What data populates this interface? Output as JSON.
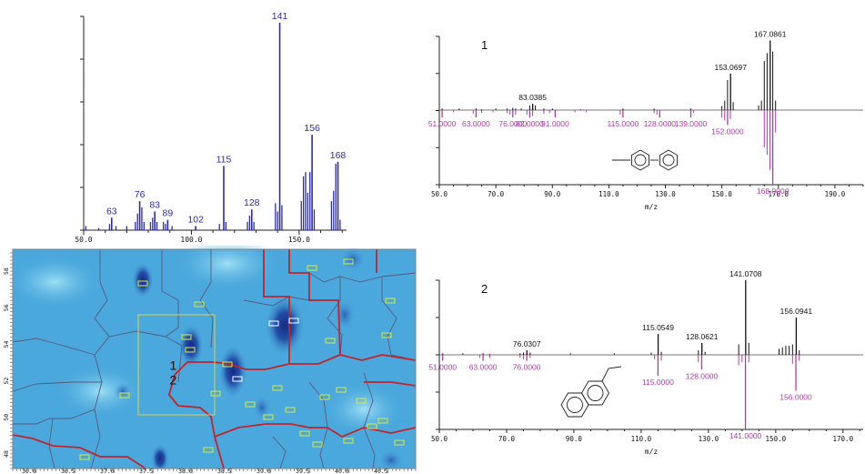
{
  "chart_data": [
    {
      "id": "ei",
      "type": "bar",
      "x_ticks": [
        "50.0",
        "100.0",
        "150.0"
      ],
      "xlim": [
        50,
        172
      ],
      "ylim": [
        0,
        100
      ],
      "labeled_peaks": [
        {
          "label": "63",
          "x": 63,
          "y": 6
        },
        {
          "label": "76",
          "x": 76,
          "y": 14
        },
        {
          "label": "83",
          "x": 83,
          "y": 9
        },
        {
          "label": "89",
          "x": 89,
          "y": 5
        },
        {
          "label": "102",
          "x": 102,
          "y": 2
        },
        {
          "label": "115",
          "x": 115,
          "y": 31
        },
        {
          "label": "128",
          "x": 128,
          "y": 10
        },
        {
          "label": "141",
          "x": 141,
          "y": 100
        },
        {
          "label": "156",
          "x": 156,
          "y": 46
        },
        {
          "label": "168",
          "x": 168,
          "y": 33
        }
      ],
      "minor_peaks": [
        {
          "x": 51,
          "y": 2
        },
        {
          "x": 57,
          "y": 1
        },
        {
          "x": 62,
          "y": 3
        },
        {
          "x": 65,
          "y": 2
        },
        {
          "x": 70,
          "y": 2
        },
        {
          "x": 74,
          "y": 4
        },
        {
          "x": 75,
          "y": 8
        },
        {
          "x": 77,
          "y": 11
        },
        {
          "x": 78,
          "y": 4
        },
        {
          "x": 81,
          "y": 4
        },
        {
          "x": 82,
          "y": 6
        },
        {
          "x": 84,
          "y": 4
        },
        {
          "x": 87,
          "y": 4
        },
        {
          "x": 88,
          "y": 3
        },
        {
          "x": 91,
          "y": 2
        },
        {
          "x": 113,
          "y": 3
        },
        {
          "x": 116,
          "y": 4
        },
        {
          "x": 126,
          "y": 4
        },
        {
          "x": 127,
          "y": 7
        },
        {
          "x": 129,
          "y": 4
        },
        {
          "x": 139,
          "y": 13
        },
        {
          "x": 140,
          "y": 9
        },
        {
          "x": 142,
          "y": 12
        },
        {
          "x": 151,
          "y": 14
        },
        {
          "x": 152,
          "y": 26
        },
        {
          "x": 153,
          "y": 28
        },
        {
          "x": 154,
          "y": 18
        },
        {
          "x": 155,
          "y": 28
        },
        {
          "x": 157,
          "y": 10
        },
        {
          "x": 165,
          "y": 14
        },
        {
          "x": 166,
          "y": 19
        },
        {
          "x": 167,
          "y": 32
        },
        {
          "x": 169,
          "y": 5
        }
      ]
    },
    {
      "id": "mirror1",
      "type": "bar",
      "panel_label": "1",
      "xlabel": "m/z",
      "x_ticks": [
        "50.0",
        "70.0",
        "90.0",
        "110.0",
        "130.0",
        "150.0",
        "170.0",
        "190.0"
      ],
      "xlim": [
        50,
        200
      ],
      "ylim": [
        -100,
        100
      ],
      "upper_labels": [
        {
          "label": "83.0385",
          "x": 83.04,
          "y": 8
        },
        {
          "label": "153.0697",
          "x": 153.07,
          "y": 46
        },
        {
          "label": "167.0861",
          "x": 167.09,
          "y": 88
        }
      ],
      "upper_minor": [
        {
          "x": 51,
          "y": 2
        },
        {
          "x": 57,
          "y": 2
        },
        {
          "x": 63,
          "y": 2
        },
        {
          "x": 65,
          "y": 1
        },
        {
          "x": 70,
          "y": 2
        },
        {
          "x": 74,
          "y": 2
        },
        {
          "x": 76,
          "y": 3
        },
        {
          "x": 77,
          "y": 2
        },
        {
          "x": 79,
          "y": 2
        },
        {
          "x": 82,
          "y": 6
        },
        {
          "x": 84,
          "y": 6
        },
        {
          "x": 87,
          "y": 2
        },
        {
          "x": 90,
          "y": 2
        },
        {
          "x": 100,
          "y": 1
        },
        {
          "x": 115,
          "y": 2
        },
        {
          "x": 126,
          "y": 2
        },
        {
          "x": 139,
          "y": 2
        },
        {
          "x": 150,
          "y": 5
        },
        {
          "x": 151,
          "y": 12
        },
        {
          "x": 152,
          "y": 38
        },
        {
          "x": 154,
          "y": 10
        },
        {
          "x": 163,
          "y": 6
        },
        {
          "x": 164,
          "y": 12
        },
        {
          "x": 165,
          "y": 62
        },
        {
          "x": 166,
          "y": 72
        },
        {
          "x": 168,
          "y": 74
        },
        {
          "x": 169,
          "y": 12
        }
      ],
      "lower_labels": [
        {
          "label": "51.0000",
          "x": 51,
          "y": -10
        },
        {
          "label": "63.0000",
          "x": 63,
          "y": -10
        },
        {
          "label": "76.0000",
          "x": 76,
          "y": -10
        },
        {
          "label": "82.0000",
          "x": 82,
          "y": -10
        },
        {
          "label": "91.0000",
          "x": 91,
          "y": -10
        },
        {
          "label": "115.0000",
          "x": 115,
          "y": -10
        },
        {
          "label": "128.0000",
          "x": 128,
          "y": -10
        },
        {
          "label": "139.0000",
          "x": 139,
          "y": -10
        },
        {
          "label": "152.0000",
          "x": 152,
          "y": -20
        },
        {
          "label": "168.0000",
          "x": 168,
          "y": -100
        }
      ],
      "lower_minor": [
        {
          "x": 55,
          "y": -3
        },
        {
          "x": 62,
          "y": -5
        },
        {
          "x": 65,
          "y": -4
        },
        {
          "x": 69,
          "y": -3
        },
        {
          "x": 74,
          "y": -4
        },
        {
          "x": 75,
          "y": -6
        },
        {
          "x": 77,
          "y": -6
        },
        {
          "x": 81,
          "y": -6
        },
        {
          "x": 83,
          "y": -8
        },
        {
          "x": 87,
          "y": -5
        },
        {
          "x": 89,
          "y": -4
        },
        {
          "x": 98,
          "y": -3
        },
        {
          "x": 102,
          "y": -3
        },
        {
          "x": 114,
          "y": -6
        },
        {
          "x": 126,
          "y": -4
        },
        {
          "x": 127,
          "y": -6
        },
        {
          "x": 140,
          "y": -4
        },
        {
          "x": 150,
          "y": -10
        },
        {
          "x": 151,
          "y": -14
        },
        {
          "x": 153,
          "y": -12
        },
        {
          "x": 165,
          "y": -50
        },
        {
          "x": 166,
          "y": -60
        },
        {
          "x": 167,
          "y": -80
        },
        {
          "x": 169,
          "y": -30
        }
      ]
    },
    {
      "id": "mirror2",
      "type": "bar",
      "panel_label": "2",
      "xlabel": "m/z",
      "x_ticks": [
        "50.0",
        "70.0",
        "90.0",
        "110.0",
        "130.0",
        "150.0",
        "170.0"
      ],
      "xlim": [
        50,
        176
      ],
      "ylim": [
        -100,
        100
      ],
      "upper_labels": [
        {
          "label": "76.0307",
          "x": 76.03,
          "y": 6
        },
        {
          "label": "115.0549",
          "x": 115.05,
          "y": 28
        },
        {
          "label": "128.0621",
          "x": 128.06,
          "y": 16
        },
        {
          "label": "141.0708",
          "x": 141.07,
          "y": 100
        },
        {
          "label": "156.0941",
          "x": 156.09,
          "y": 50
        }
      ],
      "upper_minor": [
        {
          "x": 51,
          "y": 2
        },
        {
          "x": 57,
          "y": 2
        },
        {
          "x": 63,
          "y": 2
        },
        {
          "x": 65,
          "y": 1
        },
        {
          "x": 74,
          "y": 2
        },
        {
          "x": 75,
          "y": 3
        },
        {
          "x": 77,
          "y": 3
        },
        {
          "x": 89,
          "y": 2
        },
        {
          "x": 102,
          "y": 2
        },
        {
          "x": 113,
          "y": 3
        },
        {
          "x": 116,
          "y": 4
        },
        {
          "x": 127,
          "y": 6
        },
        {
          "x": 129,
          "y": 4
        },
        {
          "x": 139,
          "y": 14
        },
        {
          "x": 142,
          "y": 16
        },
        {
          "x": 151,
          "y": 8
        },
        {
          "x": 152,
          "y": 10
        },
        {
          "x": 153,
          "y": 12
        },
        {
          "x": 154,
          "y": 12
        },
        {
          "x": 155,
          "y": 14
        },
        {
          "x": 157,
          "y": 6
        }
      ],
      "lower_labels": [
        {
          "label": "51.0000",
          "x": 51,
          "y": -8
        },
        {
          "label": "63.0000",
          "x": 63,
          "y": -8
        },
        {
          "label": "76.0000",
          "x": 76,
          "y": -8
        },
        {
          "label": "115.0000",
          "x": 115,
          "y": -28
        },
        {
          "label": "128.0000",
          "x": 128,
          "y": -20
        },
        {
          "label": "141.0000",
          "x": 141,
          "y": -100
        },
        {
          "label": "156.0000",
          "x": 156,
          "y": -48
        }
      ],
      "lower_minor": [
        {
          "x": 62,
          "y": -4
        },
        {
          "x": 65,
          "y": -4
        },
        {
          "x": 74,
          "y": -4
        },
        {
          "x": 75,
          "y": -6
        },
        {
          "x": 77,
          "y": -4
        },
        {
          "x": 114,
          "y": -6
        },
        {
          "x": 116,
          "y": -8
        },
        {
          "x": 127,
          "y": -10
        },
        {
          "x": 139,
          "y": -14
        },
        {
          "x": 140,
          "y": -10
        },
        {
          "x": 142,
          "y": -10
        },
        {
          "x": 155,
          "y": -12
        },
        {
          "x": 157,
          "y": -8
        }
      ]
    },
    {
      "id": "heatmap",
      "type": "heatmap",
      "colormap": [
        "#4aa8dc",
        "#2e6bbf",
        "#1c2f8e"
      ],
      "x_ticks": [
        "36.0",
        "36.5",
        "37.0",
        "37.5",
        "38.0",
        "38.5",
        "39.0",
        "39.5",
        "40.0",
        "40.5"
      ],
      "y_ticks": [
        "48",
        "50",
        "52",
        "54",
        "56",
        "58"
      ],
      "xlim": [
        35.7,
        40.85
      ],
      "ylim": [
        47.2,
        59.2
      ],
      "region_labels": [
        {
          "label": "1",
          "x": 37.75,
          "y": 52.6
        },
        {
          "label": "2",
          "x": 37.75,
          "y": 51.8
        }
      ]
    }
  ]
}
